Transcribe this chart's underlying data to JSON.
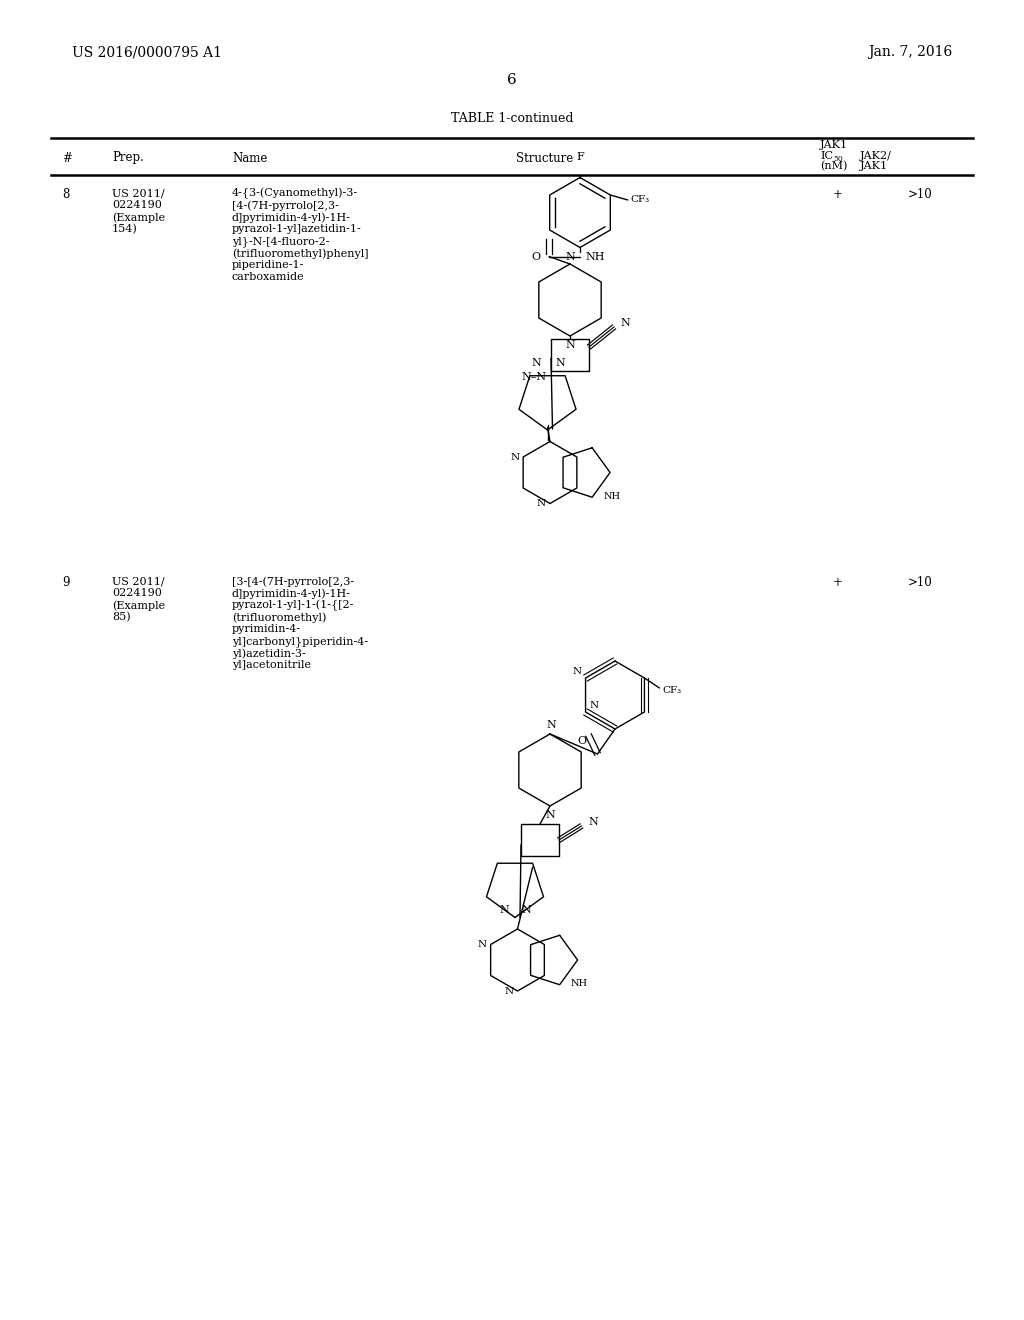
{
  "bg_color": "#ffffff",
  "header_left": "US 2016/0000795 A1",
  "header_right": "Jan. 7, 2016",
  "page_number": "6",
  "table_title": "TABLE 1-continued",
  "row8_num": "8",
  "row8_prep_line1": "US 2011/",
  "row8_prep_line2": "0224190",
  "row8_prep_line3": "(Example",
  "row8_prep_line4": "154)",
  "row8_name_line1": "4-{3-(Cyanomethyl)-3-",
  "row8_name_line2": "[4-(7H-pyrrolo[2,3-",
  "row8_name_line3": "d]pyrimidin-4-yl)-1H-",
  "row8_name_line4": "pyrazol-1-yl]azetidin-1-",
  "row8_name_line5": "yl}-N-[4-fluoro-2-",
  "row8_name_line6": "(trifluoromethyl)phenyl]",
  "row8_name_line7": "piperidine-1-",
  "row8_name_line8": "carboxamide",
  "row8_jak1": "+",
  "row8_jak2jak1": ">10",
  "row9_num": "9",
  "row9_prep_line1": "US 2011/",
  "row9_prep_line2": "0224190",
  "row9_prep_line3": "(Example",
  "row9_prep_line4": "85)",
  "row9_name_line1": "[3-[4-(7H-pyrrolo[2,3-",
  "row9_name_line2": "d]pyrimidin-4-yl)-1H-",
  "row9_name_line3": "pyrazol-1-yl]-1-(1-{[2-",
  "row9_name_line4": "(trifluoromethyl)",
  "row9_name_line5": "pyrimidin-4-",
  "row9_name_line6": "yl]carbonyl}piperidin-4-",
  "row9_name_line7": "yl)azetidin-3-",
  "row9_name_line8": "yl]acetonitrile",
  "row9_jak1": "+",
  "row9_jak2jak1": ">10"
}
